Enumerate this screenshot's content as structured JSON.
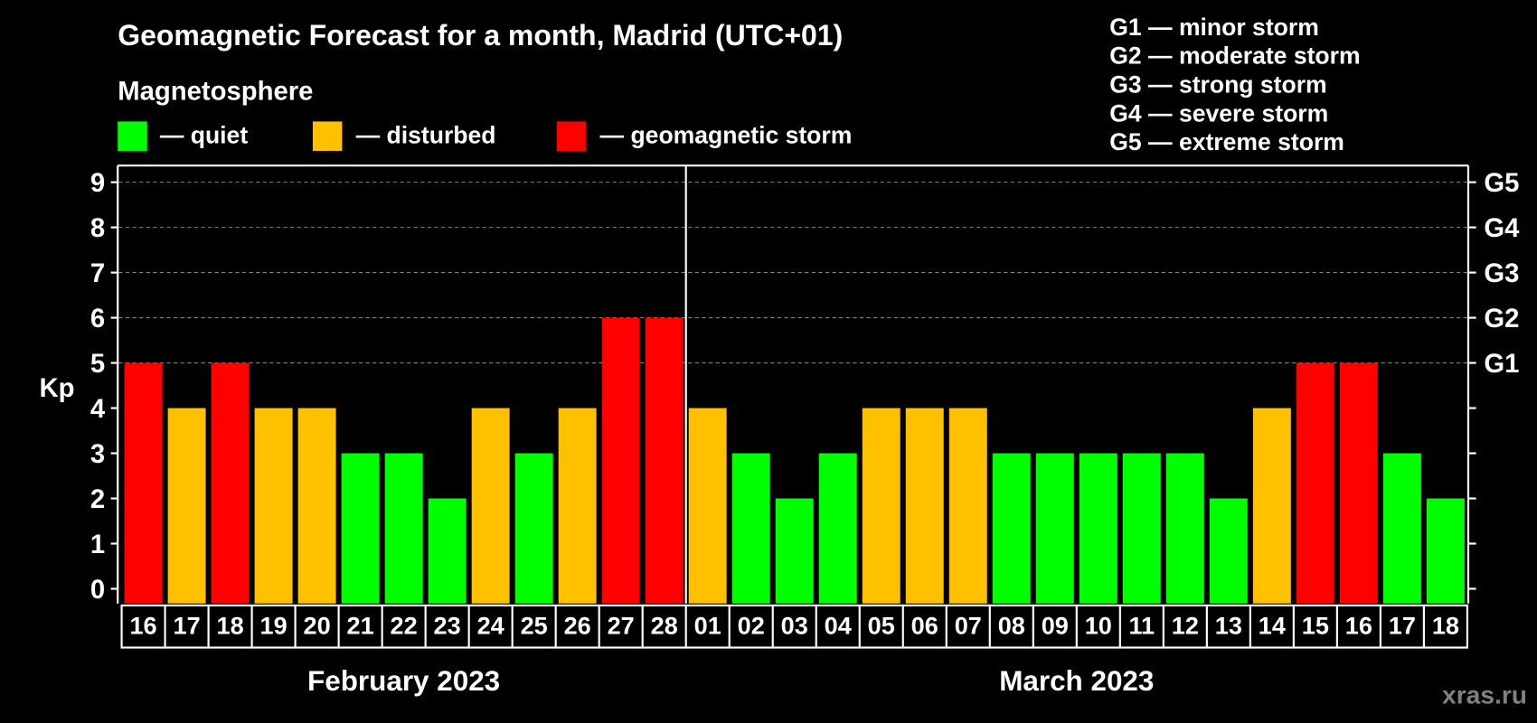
{
  "watermark": "xras.ru",
  "colors": {
    "background": "#000000",
    "frame": "#ffffff",
    "grid": "#808080",
    "watermark": "#808080"
  },
  "chart_data": {
    "type": "bar",
    "title": "Geomagnetic Forecast for a month, Madrid (UTC+01)",
    "xlabel": "",
    "ylabel": "Kp",
    "ylim": [
      0,
      9
    ],
    "yticks": [
      0,
      1,
      2,
      3,
      4,
      5,
      6,
      7,
      8,
      9
    ],
    "legend": {
      "heading": "Magnetosphere",
      "items": [
        {
          "label": "— quiet",
          "color": "#00ff00"
        },
        {
          "label": "— disturbed",
          "color": "#ffc000"
        },
        {
          "label": "— geomagnetic storm",
          "color": "#ff0000"
        }
      ]
    },
    "storm_scale": [
      "G1 — minor storm",
      "G2 — moderate storm",
      "G3 — strong storm",
      "G4 — severe storm",
      "G5 — extreme storm"
    ],
    "right_axis_labels": [
      {
        "kp": 5,
        "label": "G1"
      },
      {
        "kp": 6,
        "label": "G2"
      },
      {
        "kp": 7,
        "label": "G3"
      },
      {
        "kp": 8,
        "label": "G4"
      },
      {
        "kp": 9,
        "label": "G5"
      }
    ],
    "color_rules": [
      {
        "min": 0,
        "color": "#00ff00"
      },
      {
        "min": 4,
        "color": "#ffc000"
      },
      {
        "min": 5,
        "color": "#ff0000"
      }
    ],
    "month_groups": [
      {
        "label": "February 2023",
        "count": 13
      },
      {
        "label": "March 2023",
        "count": 18
      }
    ],
    "categories": [
      "16",
      "17",
      "18",
      "19",
      "20",
      "21",
      "22",
      "23",
      "24",
      "25",
      "26",
      "27",
      "28",
      "01",
      "02",
      "03",
      "04",
      "05",
      "06",
      "07",
      "08",
      "09",
      "10",
      "11",
      "12",
      "13",
      "14",
      "15",
      "16",
      "17",
      "18"
    ],
    "values": [
      5,
      4,
      5,
      4,
      4,
      3,
      3,
      2,
      4,
      3,
      4,
      6,
      6,
      4,
      3,
      2,
      3,
      4,
      4,
      4,
      3,
      3,
      3,
      3,
      3,
      2,
      4,
      5,
      5,
      3,
      2
    ]
  }
}
